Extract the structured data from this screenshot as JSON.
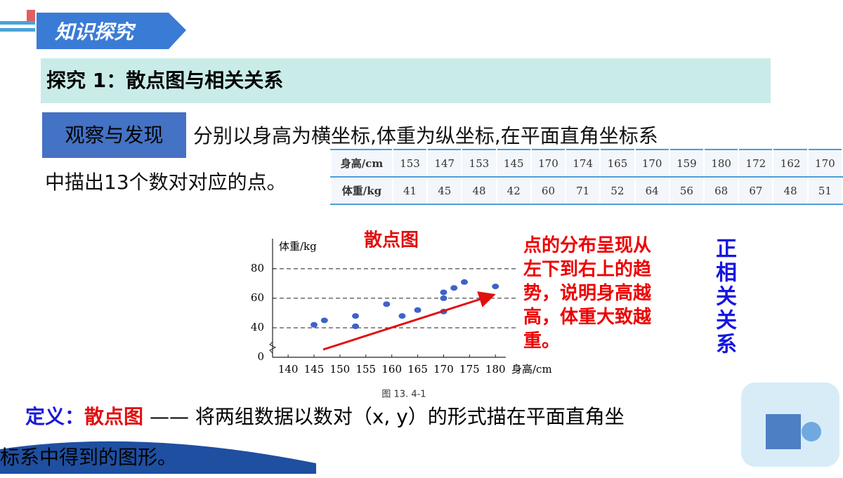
{
  "header": {
    "badge": "知识探究",
    "section_title": "探究 1：散点图与相关关系"
  },
  "observe": {
    "tag": "观察与发现",
    "lines": [
      "分别以身高为横坐标,体重为纵坐标,在平面直角坐标系",
      "中描出13个数对对应的点。"
    ]
  },
  "table": {
    "rows": [
      {
        "label": "身高/cm",
        "values": [
          153,
          147,
          153,
          145,
          170,
          174,
          165,
          170,
          159,
          180,
          172,
          162,
          170
        ]
      },
      {
        "label": "体重/kg",
        "values": [
          41,
          45,
          48,
          42,
          60,
          71,
          52,
          64,
          56,
          68,
          67,
          48,
          51
        ]
      }
    ]
  },
  "chart": {
    "type": "scatter",
    "title": "散点图",
    "x_label": "身高/cm",
    "y_label": "体重/kg",
    "caption": "图 13. 4-1",
    "xlim": [
      137,
      182
    ],
    "ylim": [
      0,
      98
    ],
    "y_break": [
      0,
      30
    ],
    "xticks": [
      140,
      145,
      150,
      155,
      160,
      165,
      170,
      175,
      180
    ],
    "yticks": [
      0,
      40,
      60,
      80
    ],
    "grid": true,
    "color": "#3d63c8"
  },
  "annotation": {
    "lines": [
      "点的分布呈现从",
      "左下到右上的趋",
      "势，说明身高越",
      "高，体重大致越",
      "重。"
    ]
  },
  "conclusion": "正相关关系",
  "definition": {
    "label": "定义：",
    "term": "散点图",
    "lines": [
      "—— 将两组数据以数对（x, y）的形式描在平面直角坐",
      "标系中得到的图形。"
    ]
  }
}
